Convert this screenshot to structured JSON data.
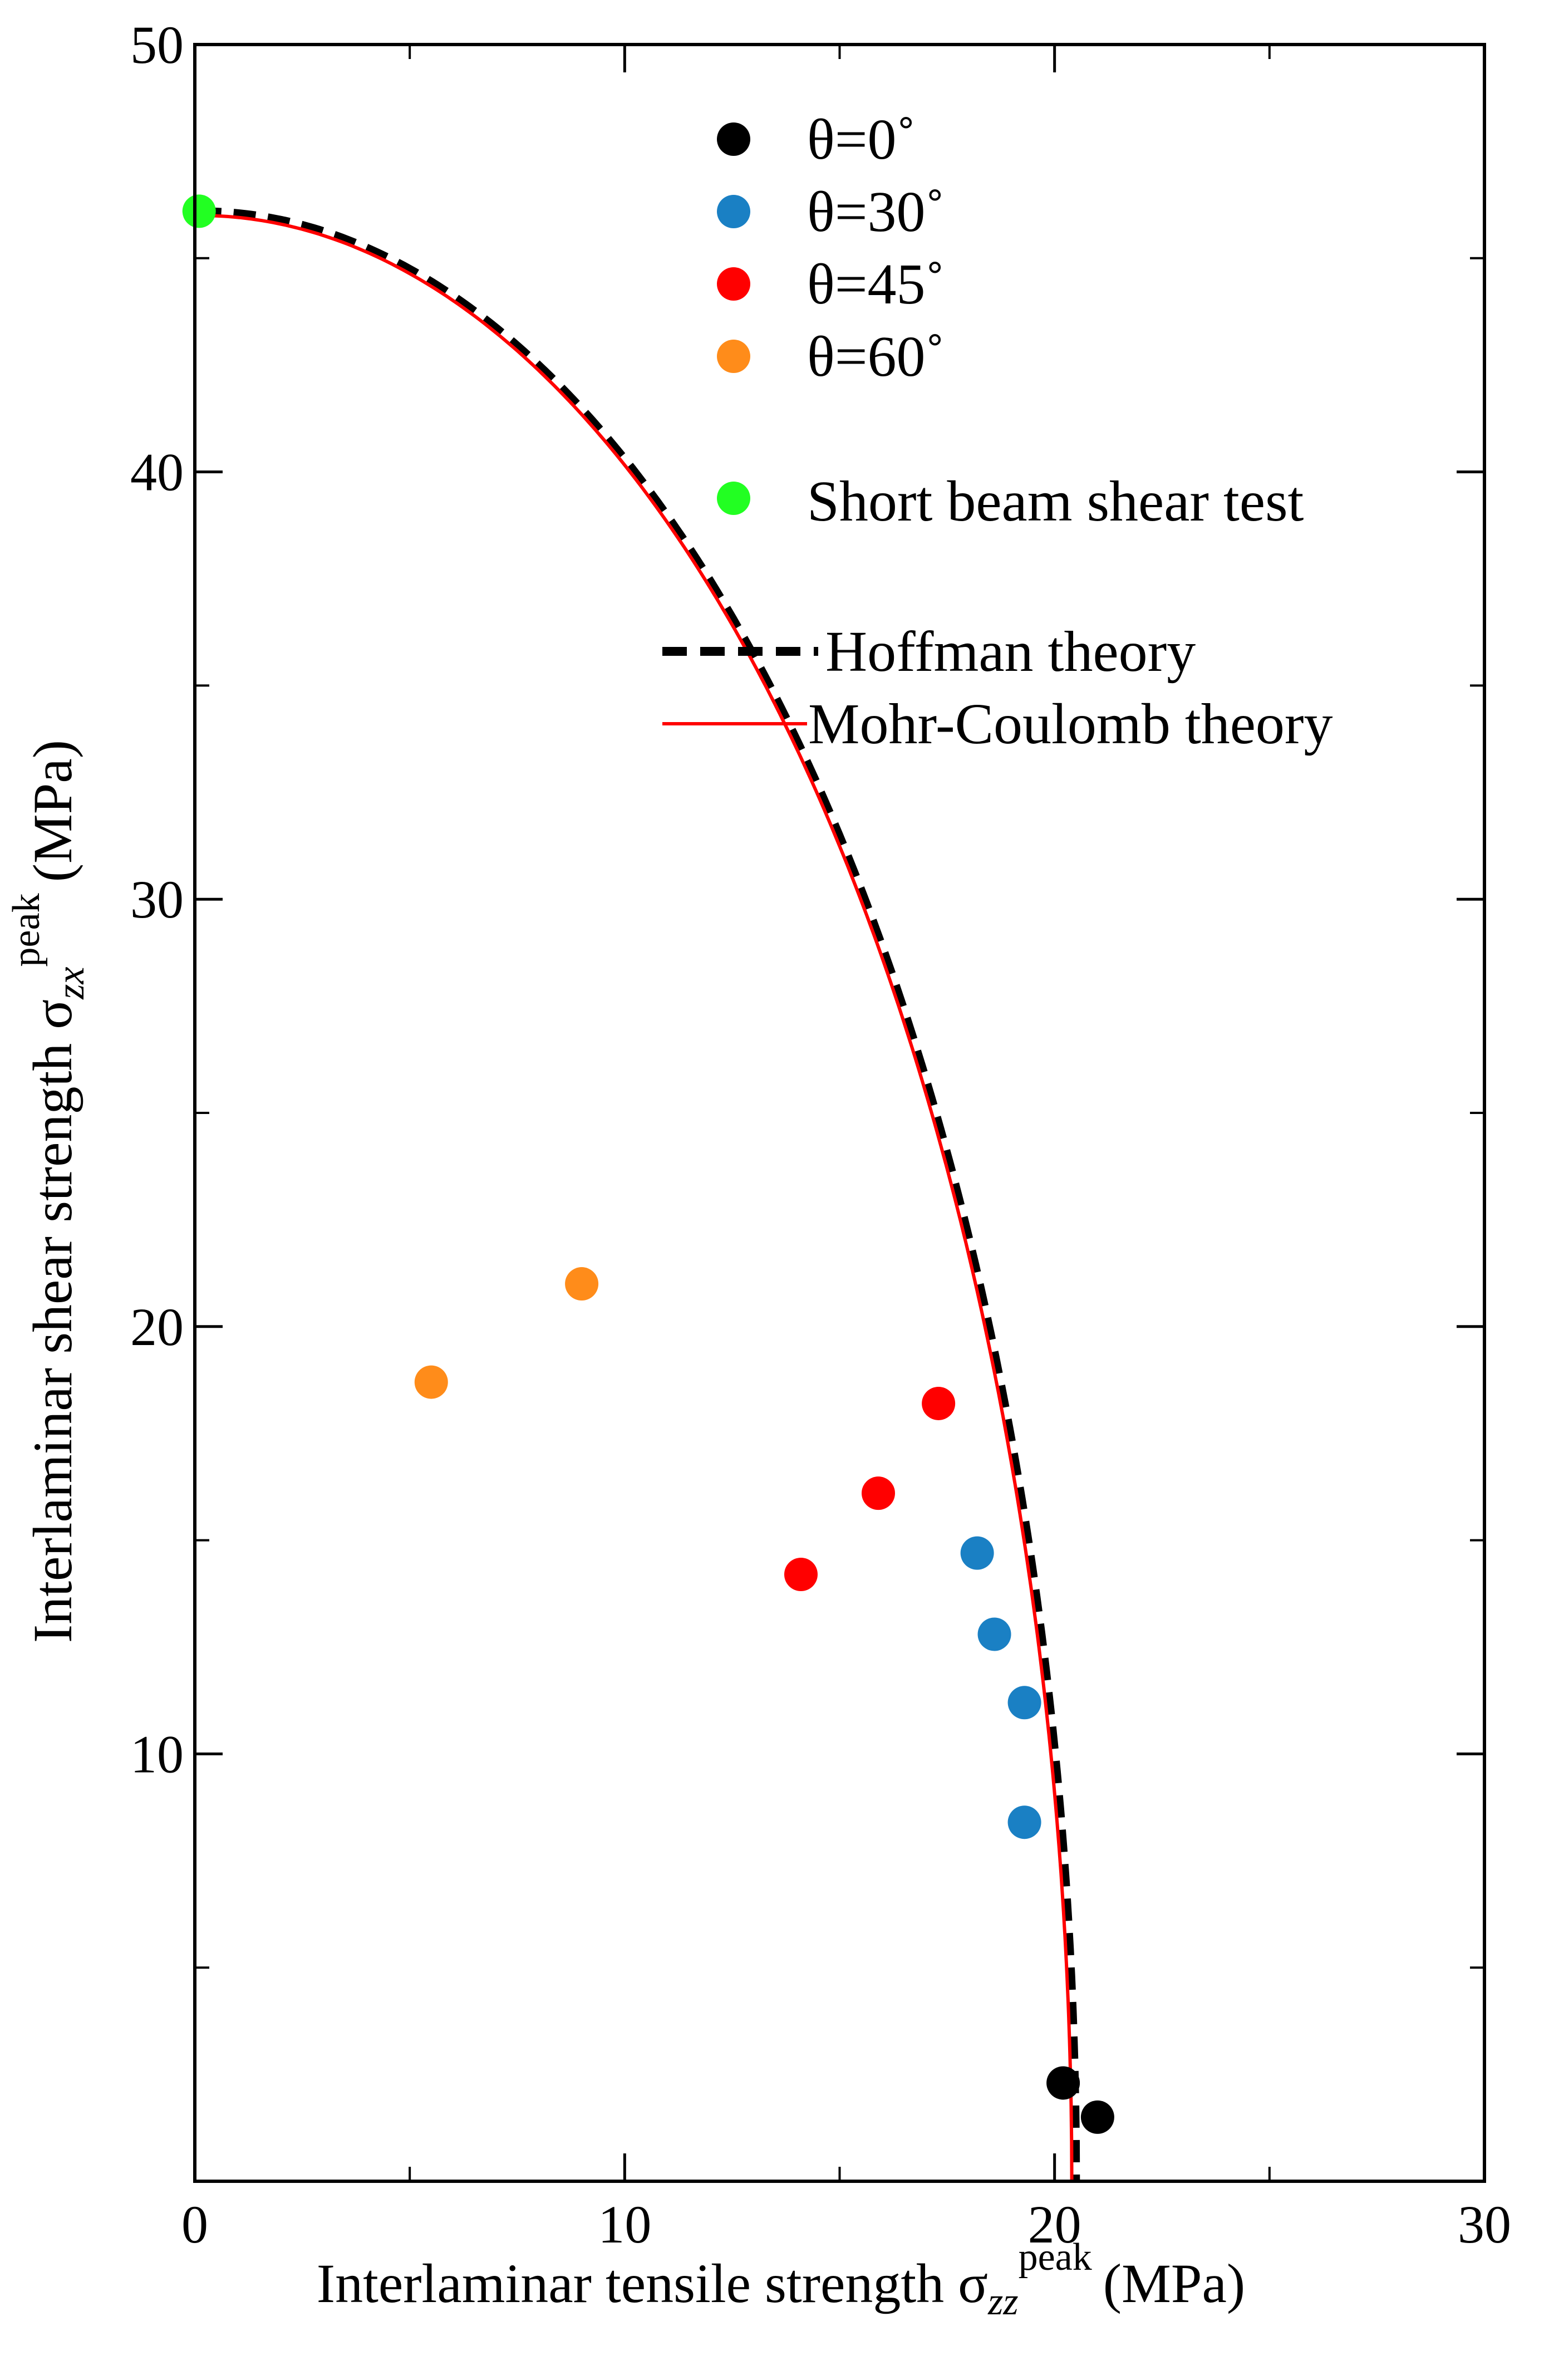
{
  "chart_data": {
    "type": "scatter",
    "title": "",
    "xlabel": {
      "prefix": "Interlaminar tensile strength σ",
      "sub": "zz",
      "sup": "peak",
      "suffix": "(MPa)"
    },
    "ylabel": {
      "prefix": "Interlaminar shear strength σ",
      "sub": "zx",
      "sup": "peak",
      "suffix": "(MPa)"
    },
    "xlim": [
      0,
      30
    ],
    "ylim": [
      0,
      50
    ],
    "x_ticks": [
      {
        "value": 0,
        "label": "0"
      },
      {
        "value": 10,
        "label": "10"
      },
      {
        "value": 20,
        "label": "20"
      },
      {
        "value": 30,
        "label": "30"
      }
    ],
    "y_ticks": [
      {
        "value": 10,
        "label": "10"
      },
      {
        "value": 20,
        "label": "20"
      },
      {
        "value": 30,
        "label": "30"
      },
      {
        "value": 40,
        "label": "40"
      },
      {
        "value": 50,
        "label": "50"
      }
    ],
    "minor_x_step": 5,
    "minor_y_step": 5,
    "grid": false,
    "legend_position": "top-right",
    "series": [
      {
        "name": "θ=0˚",
        "color": "#000000",
        "points": [
          [
            20.2,
            2.3
          ],
          [
            21.0,
            1.5
          ]
        ]
      },
      {
        "name": "θ=30˚",
        "color": "#1a80c4",
        "points": [
          [
            18.2,
            14.7
          ],
          [
            18.6,
            12.8
          ],
          [
            19.3,
            11.2
          ],
          [
            19.3,
            8.4
          ]
        ]
      },
      {
        "name": "θ=45˚",
        "color": "#ff0000",
        "points": [
          [
            17.3,
            18.2
          ],
          [
            15.9,
            16.1
          ],
          [
            14.1,
            14.2
          ]
        ]
      },
      {
        "name": "θ=60˚",
        "color": "#ff8c1a",
        "points": [
          [
            5.5,
            18.7
          ],
          [
            9.0,
            21.0
          ]
        ]
      },
      {
        "name": "Short beam shear test",
        "color": "#22ff22",
        "points": [
          [
            0.1,
            46.1
          ]
        ]
      }
    ],
    "curves": [
      {
        "name": "Hoffman theory",
        "color": "#000000",
        "style": "dashed",
        "x_intercept": 20.5,
        "y_intercept": 46.1
      },
      {
        "name": "Mohr-Coulomb theory",
        "color": "#ff0000",
        "style": "solid",
        "x_intercept": 20.4,
        "y_intercept": 46.0
      }
    ]
  }
}
